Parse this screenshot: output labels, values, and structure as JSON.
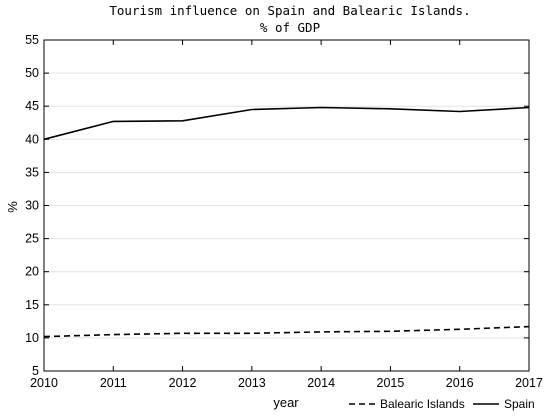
{
  "chart_data": {
    "type": "line",
    "title": "Tourism influence on Spain and Balearic Islands.",
    "subtitle": "% of GDP",
    "xlabel": "year",
    "ylabel": "%",
    "xlim": [
      2010,
      2017
    ],
    "ylim": [
      5,
      55
    ],
    "x_ticks": [
      2010,
      2011,
      2012,
      2013,
      2014,
      2015,
      2016,
      2017
    ],
    "y_ticks": [
      5,
      10,
      15,
      20,
      25,
      30,
      35,
      40,
      45,
      50,
      55
    ],
    "grid": "horizontal",
    "legend_position": "bottom-right",
    "x": [
      2010,
      2011,
      2012,
      2013,
      2014,
      2015,
      2016,
      2017
    ],
    "series": [
      {
        "name": "Balearic Islands",
        "style": "dashed",
        "color": "#000000",
        "values": [
          10.2,
          10.5,
          10.7,
          10.7,
          10.9,
          11.0,
          11.3,
          11.7
        ]
      },
      {
        "name": "Spain",
        "style": "solid",
        "color": "#000000",
        "values": [
          40.0,
          42.7,
          42.8,
          44.5,
          44.8,
          44.6,
          44.2,
          44.8
        ]
      }
    ]
  }
}
